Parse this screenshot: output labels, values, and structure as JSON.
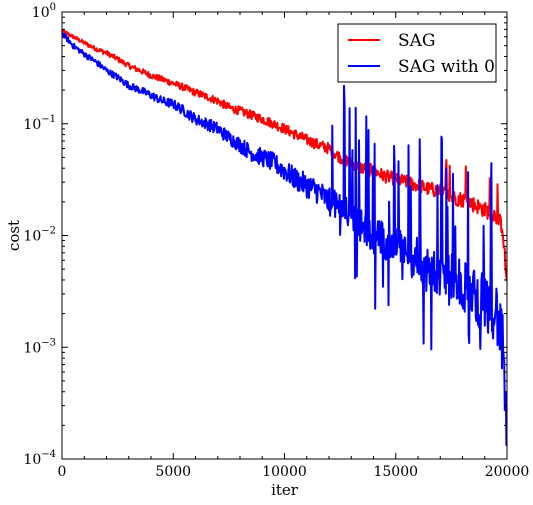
{
  "chart_data": {
    "type": "line",
    "title": "",
    "xlabel": "iter",
    "ylabel": "cost",
    "xlim": [
      0,
      20000
    ],
    "ylim": [
      0.0001,
      1
    ],
    "yscale": "log",
    "grid": false,
    "legend_position": "top-right",
    "x_ticks": [
      {
        "value": 0,
        "label": "0"
      },
      {
        "value": 5000,
        "label": "5000"
      },
      {
        "value": 10000,
        "label": "10000"
      },
      {
        "value": 15000,
        "label": "15000"
      },
      {
        "value": 20000,
        "label": "20000"
      }
    ],
    "y_ticks": [
      {
        "value": 1,
        "base": "10",
        "exp": "0"
      },
      {
        "value": 0.1,
        "base": "10",
        "exp": "−1"
      },
      {
        "value": 0.01,
        "base": "10",
        "exp": "−2"
      },
      {
        "value": 0.001,
        "base": "10",
        "exp": "−3"
      },
      {
        "value": 0.0001,
        "base": "10",
        "exp": "−4"
      }
    ],
    "series": [
      {
        "name": "SAG",
        "color": "#ff0000",
        "x": [
          0,
          500,
          1000,
          1500,
          2000,
          2500,
          3000,
          3500,
          4000,
          4500,
          5000,
          5500,
          6000,
          6500,
          7000,
          7500,
          8000,
          8500,
          9000,
          9500,
          10000,
          10500,
          11000,
          11500,
          12000,
          12500,
          13000,
          13500,
          14000,
          14500,
          15000,
          15500,
          16000,
          16500,
          17000,
          17500,
          18000,
          18500,
          19000,
          19500,
          19800,
          20000
        ],
        "y": [
          0.68,
          0.6,
          0.53,
          0.47,
          0.43,
          0.38,
          0.33,
          0.3,
          0.27,
          0.25,
          0.23,
          0.21,
          0.19,
          0.175,
          0.16,
          0.14,
          0.13,
          0.12,
          0.11,
          0.1,
          0.09,
          0.08,
          0.072,
          0.065,
          0.06,
          0.05,
          0.045,
          0.04,
          0.038,
          0.034,
          0.032,
          0.03,
          0.028,
          0.026,
          0.025,
          0.022,
          0.021,
          0.019,
          0.017,
          0.015,
          0.012,
          0.0035
        ]
      },
      {
        "name": "SAG with 0",
        "color": "#0000ff",
        "x": [
          0,
          500,
          1000,
          1500,
          2000,
          2500,
          3000,
          3500,
          4000,
          4500,
          5000,
          5500,
          6000,
          6500,
          7000,
          7500,
          8000,
          8500,
          9000,
          9500,
          10000,
          10500,
          11000,
          11500,
          12000,
          12500,
          13000,
          13500,
          14000,
          14500,
          15000,
          15500,
          16000,
          16500,
          17000,
          17500,
          18000,
          18500,
          19000,
          19500,
          19800,
          20000
        ],
        "y": [
          0.65,
          0.5,
          0.42,
          0.36,
          0.3,
          0.26,
          0.22,
          0.2,
          0.18,
          0.16,
          0.15,
          0.13,
          0.11,
          0.1,
          0.09,
          0.075,
          0.065,
          0.055,
          0.05,
          0.045,
          0.038,
          0.032,
          0.028,
          0.025,
          0.02,
          0.018,
          0.015,
          0.012,
          0.01,
          0.009,
          0.008,
          0.007,
          0.006,
          0.005,
          0.0045,
          0.004,
          0.0035,
          0.003,
          0.0025,
          0.0022,
          0.001,
          0.00015
        ]
      }
    ]
  }
}
